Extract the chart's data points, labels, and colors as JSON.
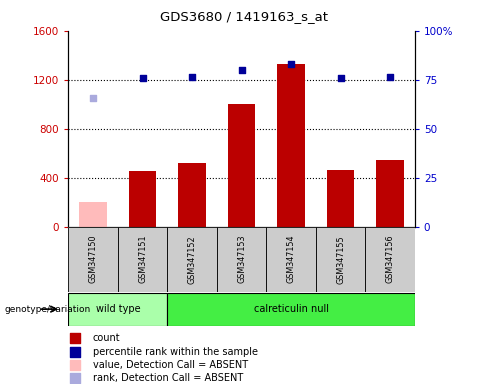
{
  "title": "GDS3680 / 1419163_s_at",
  "samples": [
    "GSM347150",
    "GSM347151",
    "GSM347152",
    "GSM347153",
    "GSM347154",
    "GSM347155",
    "GSM347156"
  ],
  "counts": [
    200,
    450,
    520,
    1000,
    1330,
    460,
    540
  ],
  "ranks": [
    1050,
    1210,
    1220,
    1280,
    1330,
    1210,
    1220
  ],
  "absent_flags": [
    true,
    false,
    false,
    false,
    false,
    false,
    false
  ],
  "groups": [
    {
      "label": "wild type",
      "samples": [
        0,
        1
      ],
      "color": "#AAFFAA"
    },
    {
      "label": "calreticulin null",
      "samples": [
        2,
        3,
        4,
        5,
        6
      ],
      "color": "#44EE44"
    }
  ],
  "bar_color_normal": "#BB0000",
  "bar_color_absent": "#FFBBBB",
  "rank_color_normal": "#000099",
  "rank_color_absent": "#AAAADD",
  "ylim_left": [
    0,
    1600
  ],
  "ylim_right": [
    0,
    100
  ],
  "yticks_left": [
    0,
    400,
    800,
    1200,
    1600
  ],
  "yticks_right": [
    0,
    25,
    50,
    75,
    100
  ],
  "ylabel_left_color": "#CC0000",
  "ylabel_right_color": "#0000CC",
  "genotype_label": "genotype/variation",
  "legend_items": [
    {
      "label": "count",
      "color": "#BB0000"
    },
    {
      "label": "percentile rank within the sample",
      "color": "#000099"
    },
    {
      "label": "value, Detection Call = ABSENT",
      "color": "#FFBBBB"
    },
    {
      "label": "rank, Detection Call = ABSENT",
      "color": "#AAAADD"
    }
  ],
  "bar_width": 0.55,
  "rank_scale": 16.0
}
